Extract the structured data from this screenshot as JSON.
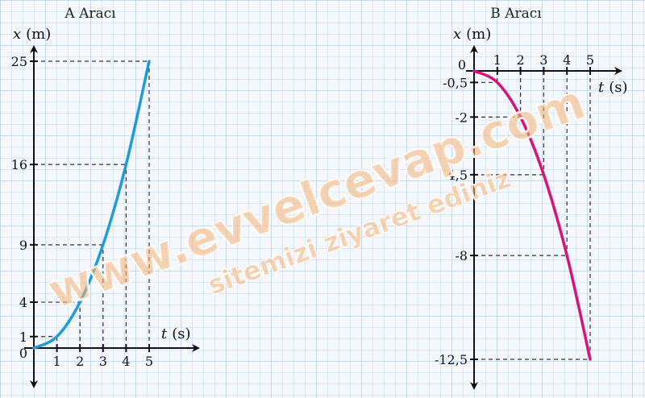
{
  "chart_data": [
    {
      "type": "line",
      "title": "A Aracı",
      "ylabel_var": "x",
      "ylabel_unit": "(m)",
      "xlabel_var": "t",
      "xlabel_unit": "(s)",
      "origin_label": "0",
      "x": [
        0,
        1,
        2,
        3,
        4,
        5
      ],
      "y": [
        0,
        1,
        4,
        9,
        16,
        25
      ],
      "xticks": [
        "1",
        "2",
        "3",
        "4",
        "5"
      ],
      "yticks": [
        "1",
        "4",
        "9",
        "16",
        "25"
      ],
      "xlim": [
        0,
        5
      ],
      "ylim": [
        0,
        25
      ],
      "color": "#1f9bd7",
      "grid": true
    },
    {
      "type": "line",
      "title": "B Aracı",
      "ylabel_var": "x",
      "ylabel_unit": "(m)",
      "xlabel_var": "t",
      "xlabel_unit": "(s)",
      "origin_label": "0",
      "x": [
        0,
        1,
        2,
        3,
        4,
        5
      ],
      "y": [
        0,
        -0.5,
        -2,
        -4.5,
        -8,
        -12.5
      ],
      "xticks": [
        "1",
        "2",
        "3",
        "4",
        "5"
      ],
      "yticks": [
        "-0,5",
        "-2",
        "-4,5",
        "-8",
        "-12,5"
      ],
      "xlim": [
        0,
        5
      ],
      "ylim": [
        -12.5,
        0
      ],
      "color": "#d6137a",
      "grid": true
    }
  ],
  "watermark": {
    "line1": "www.evvelcevap.com",
    "line2": "sitemizi ziyaret ediniz"
  }
}
